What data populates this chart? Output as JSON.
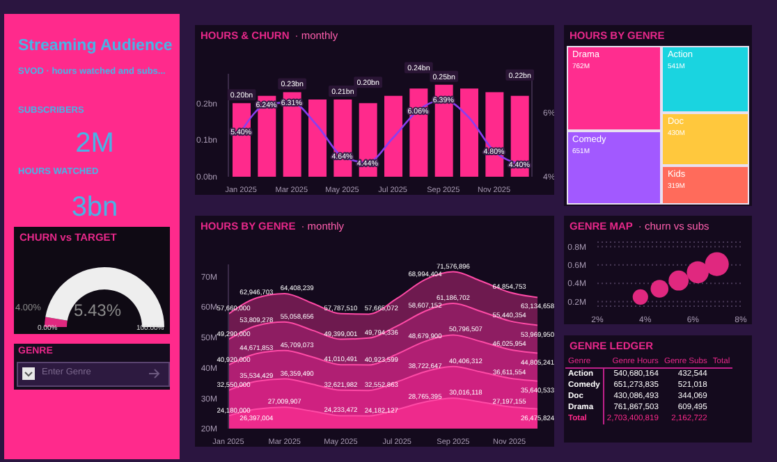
{
  "chart_data": [
    {
      "type": "other",
      "title": "Streaming Audience",
      "subtitle": "SVOD · hours watched and subs...",
      "annotations": [
        "SUBSCRIBERS",
        "2M",
        "HOURS WATCHED",
        "3bn",
        "GENRE",
        "Enter Genre"
      ]
    },
    {
      "type": "bar",
      "title": "HOURS & CHURN",
      "subtitle": "· monthly",
      "categories": [
        "Jan 2025",
        null,
        "Mar 2025",
        null,
        "May 2025",
        null,
        "Jul 2025",
        null,
        "Sep 2025",
        null,
        "Nov 2025",
        null
      ],
      "series": [
        {
          "type": "bar",
          "color": "#ff2a8c",
          "values": [
            0.2,
            0.22,
            0.23,
            0.21,
            0.21,
            0.2,
            0.22,
            0.24,
            0.25,
            0.24,
            0.23,
            0.22
          ],
          "value_labels": [
            "0.20bn",
            null,
            "0.23bn",
            null,
            "0.21bn",
            "0.20bn",
            null,
            "0.24bn",
            "0.25bn",
            null,
            null,
            "0.22bn"
          ]
        },
        {
          "type": "line",
          "axis": "y2",
          "color": "#8a3ff0",
          "values": [
            5.4,
            6.24,
            6.31,
            5.6,
            4.64,
            4.44,
            5.2,
            6.06,
            6.39,
            5.85,
            4.8,
            4.4
          ],
          "value_labels": [
            "5.40%",
            "6.24%",
            "6.31%",
            null,
            "4.64%",
            "4.44%",
            null,
            "6.06%",
            "6.39%",
            null,
            "4.80%",
            "4.40%"
          ]
        }
      ],
      "ylim": [
        0,
        0.28
      ],
      "yticks": [
        {
          "value": 0,
          "label": "0.0bn"
        },
        {
          "value": 0.1,
          "label": "0.1bn"
        },
        {
          "value": 0.2,
          "label": "0.2bn"
        }
      ],
      "y2lim": [
        4,
        7.2
      ],
      "y2ticks": [
        {
          "value": 4,
          "label": "4%"
        },
        {
          "value": 6,
          "label": "6%"
        }
      ]
    },
    {
      "type": "other",
      "title": "HOURS BY GENRE",
      "categories": [
        "Drama",
        "Comedy",
        "Action",
        "Doc",
        "Kids"
      ],
      "values": [
        762,
        651,
        541,
        430,
        319
      ],
      "value_labels": [
        "762M",
        "651M",
        "541M",
        "430M",
        "319M"
      ],
      "colors": [
        "#ff2d8f",
        "#a259ff",
        "#1ad4e0",
        "#ffc83d",
        "#ff6b5b"
      ]
    },
    {
      "type": "donut",
      "title": "CHURN vs TARGET",
      "categories": [
        null,
        null
      ],
      "values": [
        5.43,
        94.57
      ],
      "colors": [
        "#e0287f",
        "#eeeeee"
      ],
      "annotations": [
        "5.43%",
        "4.00%",
        "0.00%",
        "100.00%"
      ]
    },
    {
      "type": "area",
      "title": "HOURS BY GENRE",
      "subtitle": "· monthly",
      "categories": [
        "Jan 2025",
        null,
        "Mar 2025",
        null,
        "May 2025",
        null,
        "Jul 2025",
        null,
        "Sep 2025",
        null,
        "Nov 2025",
        null
      ],
      "series": [
        {
          "color": "#6e1a4f",
          "values": [
            57660000,
            62946703,
            64408239,
            61200000,
            57787510,
            57665072,
            62800000,
            68994404,
            71576896,
            68500000,
            64854753,
            63134658
          ],
          "value_labels": [
            "57,660,000",
            "62,946,703",
            "64,408,239",
            null,
            "57,787,510",
            "57,665,072",
            null,
            "68,994,404",
            "71,576,896",
            null,
            "64,854,753",
            "63,134,658"
          ]
        },
        {
          "color": "#8e1d62",
          "values": [
            49290000,
            53809278,
            55058656,
            52300000,
            49399001,
            49794336,
            53700000,
            58607152,
            61186702,
            58500000,
            55440354,
            53969950
          ],
          "value_labels": [
            "49,290,000",
            "53,809,278",
            "55,058,656",
            null,
            "49,399,001",
            "49,794,336",
            null,
            "58,607,152",
            "61,186,702",
            null,
            "55,440,354",
            "53,969,950"
          ]
        },
        {
          "color": "#b01f73",
          "values": [
            40920000,
            44671853,
            45709073,
            43500000,
            41010491,
            40923599,
            44500000,
            48679900,
            50796507,
            48600000,
            46025954,
            44805241
          ],
          "value_labels": [
            "40,920,000",
            "44,671,853",
            "45,709,073",
            null,
            "41,010,491",
            "40,923,599",
            null,
            "48,679,900",
            "50,796,507",
            null,
            "46,025,954",
            "44,805,241"
          ]
        },
        {
          "color": "#cf2180",
          "values": [
            32550000,
            35534429,
            36359490,
            34600000,
            32621982,
            32552863,
            35400000,
            38722647,
            40406312,
            38600000,
            36611554,
            35640533
          ],
          "value_labels": [
            "32,550,000",
            "35,534,429",
            "36,359,490",
            null,
            "32,621,982",
            "32,552,863",
            null,
            "38,722,647",
            "40,406,312",
            null,
            "36,611,554",
            "35,640,533"
          ]
        },
        {
          "color": "#ee2a8c",
          "values": [
            24180000,
            26397004,
            27009907,
            25700000,
            24233472,
            24182127,
            26300000,
            28765395,
            30016118,
            28700000,
            27197155,
            26475824
          ],
          "value_labels": [
            "24,180,000",
            "26,397,004",
            "27,009,907",
            null,
            "24,233,472",
            "24,182,127",
            null,
            "28,765,395",
            "30,016,118",
            null,
            "27,197,155",
            "26,475,824"
          ]
        }
      ],
      "ylim": [
        20000000,
        74000000
      ],
      "yticks": [
        {
          "value": 20000000,
          "label": "20M"
        },
        {
          "value": 30000000,
          "label": "30M"
        },
        {
          "value": 40000000,
          "label": "40M"
        },
        {
          "value": 50000000,
          "label": "50M"
        },
        {
          "value": 60000000,
          "label": "60M"
        },
        {
          "value": 70000000,
          "label": "70M"
        }
      ]
    },
    {
      "type": "bubble",
      "title": "GENRE MAP",
      "subtitle": "· churn vs subs",
      "x": [
        3.8,
        4.6,
        5.4,
        6.2,
        7.0
      ],
      "values": [
        0.25,
        0.34,
        0.43,
        0.52,
        0.61
      ],
      "sizes": [
        0.42,
        0.56,
        0.71,
        0.85,
        1
      ],
      "color": "#e0287f",
      "xlim": [
        2,
        8
      ],
      "xticks": [
        {
          "value": 2,
          "label": "2%"
        },
        {
          "value": 4,
          "label": "4%"
        },
        {
          "value": 6,
          "label": "6%"
        },
        {
          "value": 8,
          "label": "8%"
        }
      ],
      "ylim": [
        0.15,
        0.85
      ],
      "yticks": [
        {
          "value": 0.2,
          "label": "0.2M"
        },
        {
          "value": 0.4,
          "label": "0.4M"
        },
        {
          "value": 0.6,
          "label": "0.6M"
        },
        {
          "value": 0.8,
          "label": "0.8M"
        }
      ],
      "grid": "y"
    },
    {
      "type": "other",
      "title": "GENRE LEDGER",
      "categories": [
        "Genre",
        "Genre Hours",
        "Genre Subs",
        "Total"
      ],
      "y_categories": [
        "Action",
        "Comedy",
        "Doc",
        "Drama",
        "Total"
      ],
      "cell_labels": [
        [
          "540,680,164",
          "432,544",
          null
        ],
        [
          "651,273,835",
          "521,018",
          null
        ],
        [
          "430,086,493",
          "344,069",
          null
        ],
        [
          "761,867,503",
          "609,495",
          null
        ],
        [
          "2,703,400,819",
          "2,162,722",
          null
        ]
      ]
    }
  ]
}
